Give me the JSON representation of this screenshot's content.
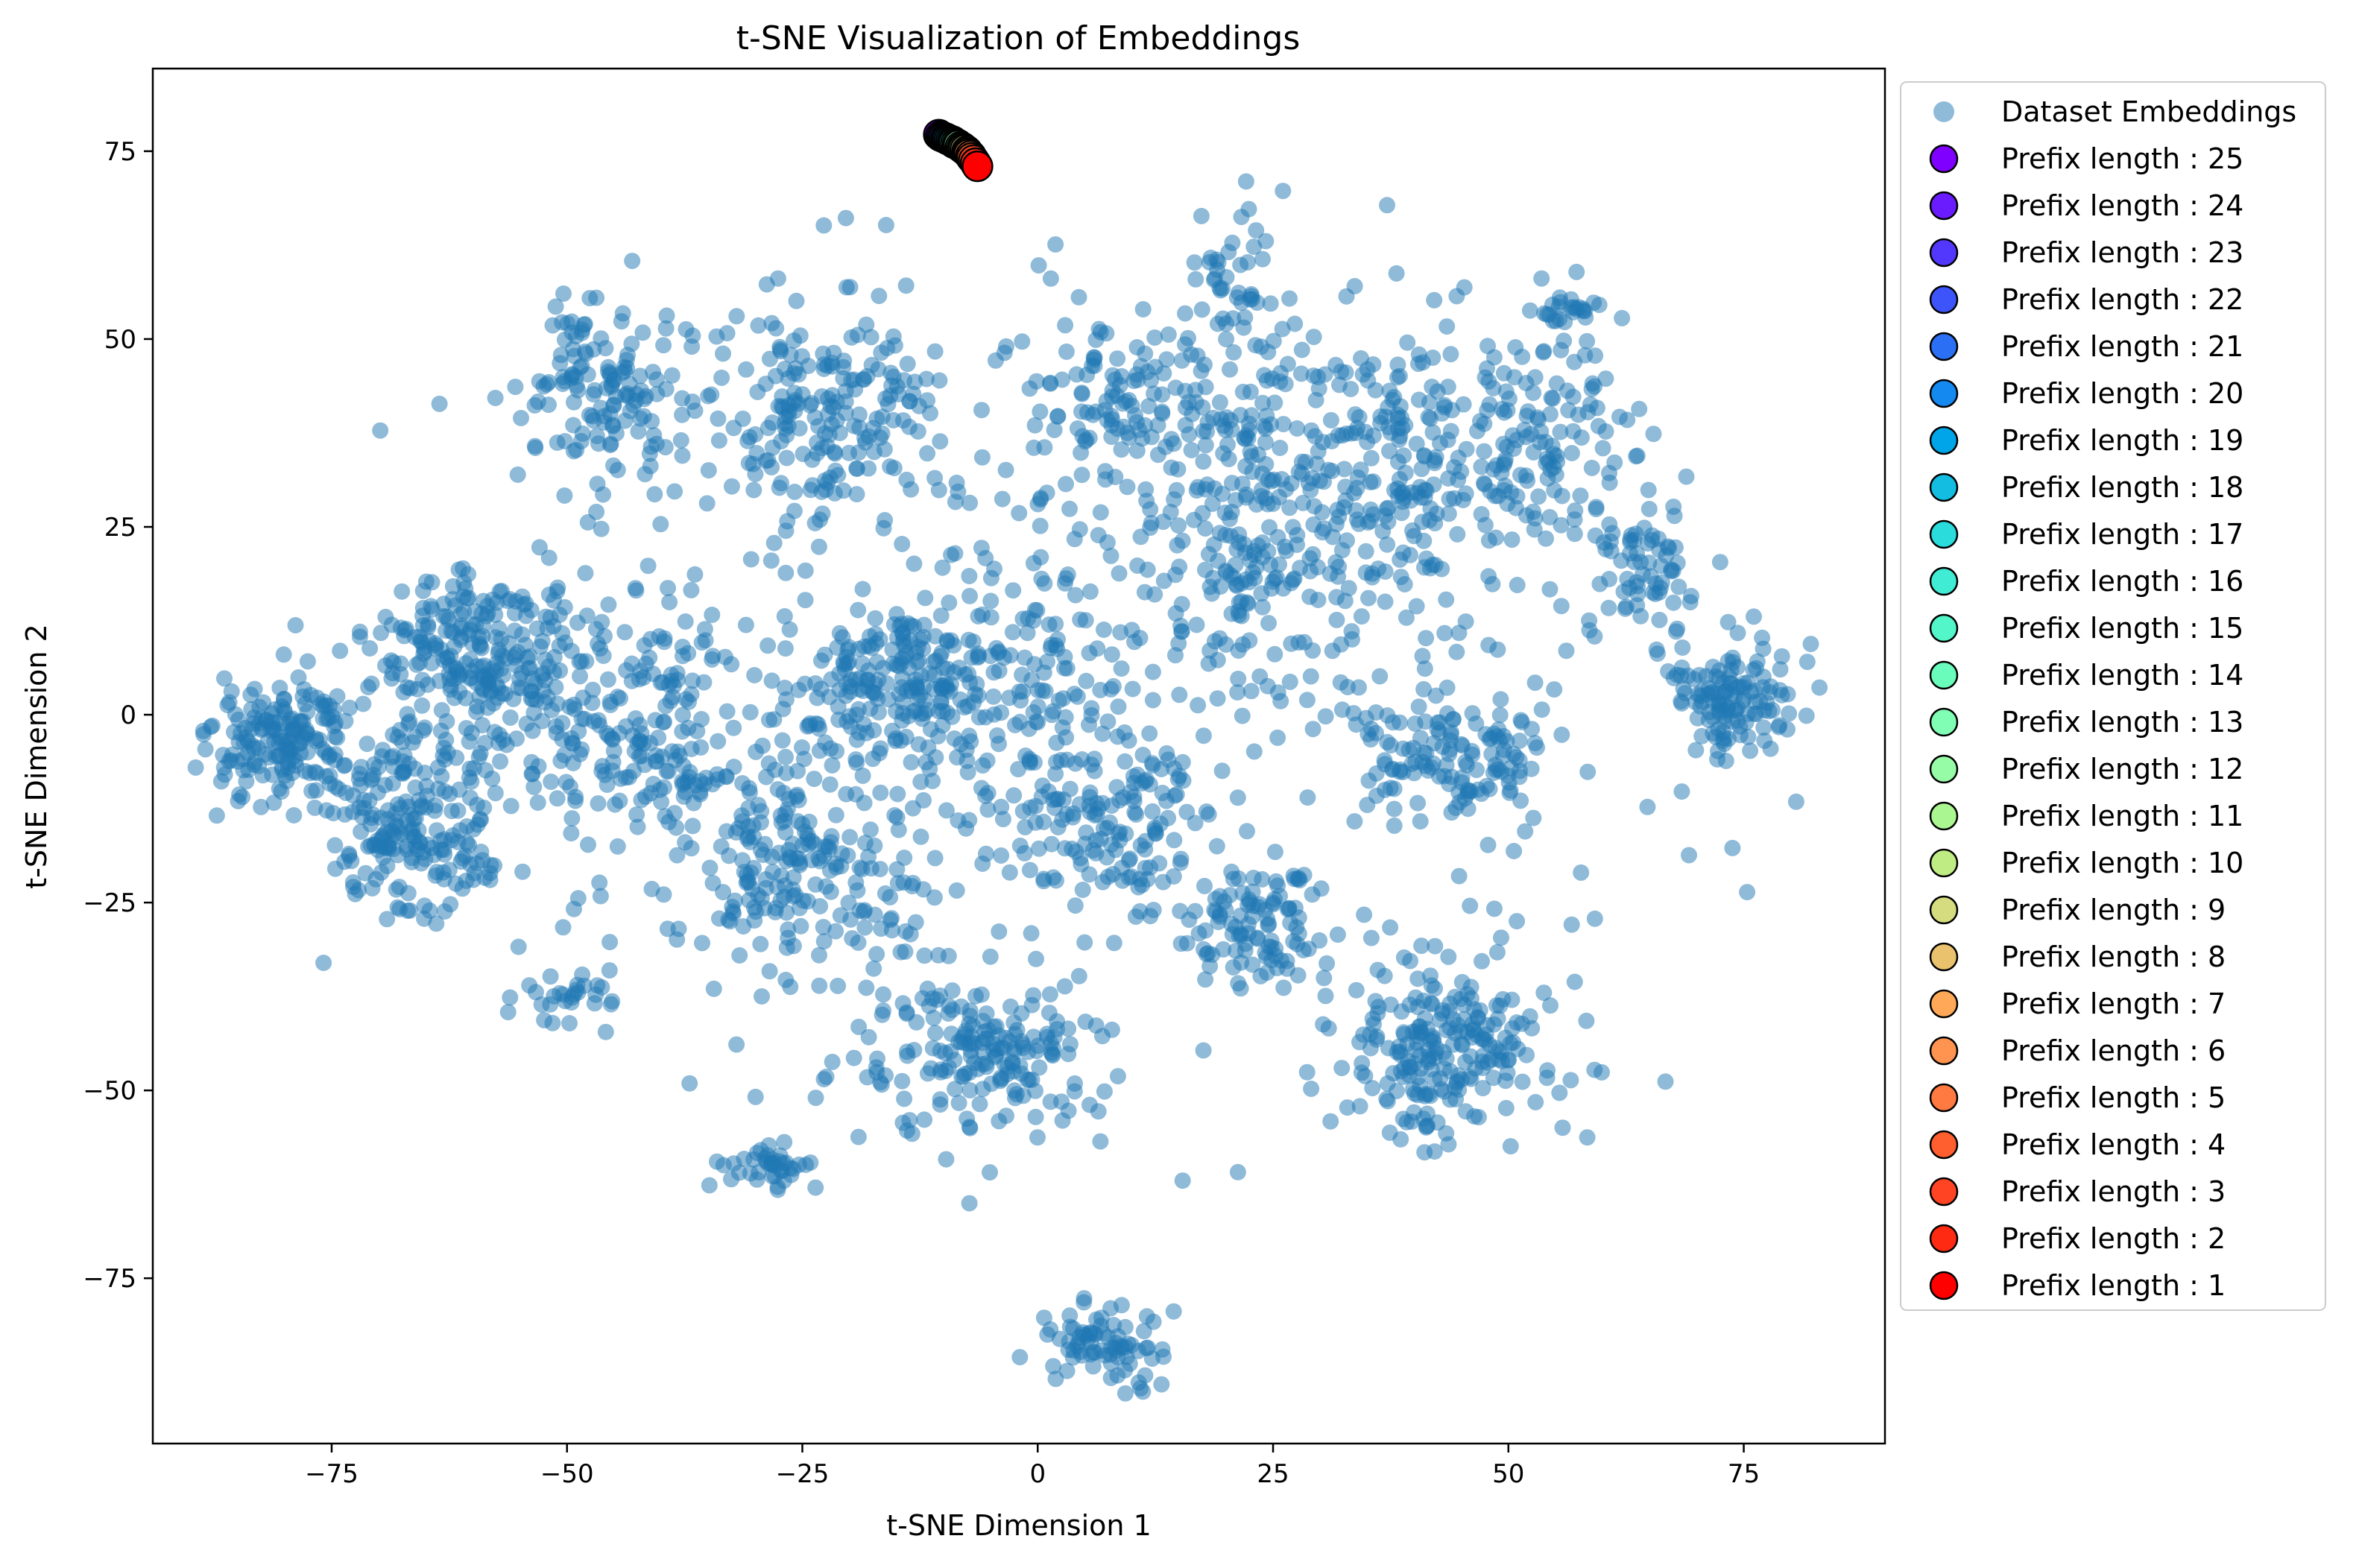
{
  "chart_data": {
    "type": "scatter",
    "title": "t-SNE Visualization of Embeddings",
    "xlabel": "t-SNE Dimension 1",
    "ylabel": "t-SNE Dimension 2",
    "xlim": [
      -94,
      90
    ],
    "ylim": [
      -97,
      86
    ],
    "xticks": [
      -75,
      -50,
      -25,
      0,
      25,
      50,
      75
    ],
    "yticks": [
      -75,
      -50,
      -25,
      0,
      25,
      50,
      75
    ],
    "grid": false,
    "legend_position": "outside-right-top",
    "dataset": {
      "name": "Dataset Embeddings",
      "color": "#1f77b4",
      "opacity": 0.5,
      "clusters": [
        {
          "cx": -80,
          "cy": -4,
          "sx": 4.0,
          "sy": 4.5,
          "n": 170
        },
        {
          "cx": -67,
          "cy": -15,
          "sx": 4.5,
          "sy": 6.0,
          "n": 210
        },
        {
          "cx": -60,
          "cy": 8,
          "sx": 5.5,
          "sy": 6.0,
          "n": 220
        },
        {
          "cx": -46,
          "cy": 43,
          "sx": 4.0,
          "sy": 5.5,
          "n": 140
        },
        {
          "cx": -50,
          "cy": -38,
          "sx": 3.0,
          "sy": 2.0,
          "n": 30
        },
        {
          "cx": -42,
          "cy": 0,
          "sx": 7.0,
          "sy": 9.0,
          "n": 220
        },
        {
          "cx": -28,
          "cy": -60,
          "sx": 2.5,
          "sy": 1.5,
          "n": 40
        },
        {
          "cx": -23,
          "cy": 40,
          "sx": 6.0,
          "sy": 8.0,
          "n": 190
        },
        {
          "cx": -15,
          "cy": 5,
          "sx": 5.0,
          "sy": 5.0,
          "n": 180
        },
        {
          "cx": -25,
          "cy": -20,
          "sx": 7.0,
          "sy": 9.0,
          "n": 200
        },
        {
          "cx": -5,
          "cy": -45,
          "sx": 6.0,
          "sy": 5.0,
          "n": 170
        },
        {
          "cx": 7,
          "cy": -84,
          "sx": 3.0,
          "sy": 2.5,
          "n": 80
        },
        {
          "cx": 8,
          "cy": 42,
          "sx": 4.0,
          "sy": 5.0,
          "n": 90
        },
        {
          "cx": 0,
          "cy": 5,
          "sx": 6.0,
          "sy": 14.0,
          "n": 150
        },
        {
          "cx": 9,
          "cy": -15,
          "sx": 5.0,
          "sy": 6.0,
          "n": 110
        },
        {
          "cx": 22,
          "cy": 30,
          "sx": 6.0,
          "sy": 14.0,
          "n": 220
        },
        {
          "cx": 21,
          "cy": 58,
          "sx": 2.0,
          "sy": 3.5,
          "n": 30
        },
        {
          "cx": 23,
          "cy": -28,
          "sx": 4.0,
          "sy": 4.0,
          "n": 100
        },
        {
          "cx": 35,
          "cy": 30,
          "sx": 7.0,
          "sy": 10.0,
          "n": 200
        },
        {
          "cx": 44,
          "cy": -5,
          "sx": 5.0,
          "sy": 5.0,
          "n": 140
        },
        {
          "cx": 43,
          "cy": -45,
          "sx": 6.0,
          "sy": 6.0,
          "n": 230
        },
        {
          "cx": 52,
          "cy": 35,
          "sx": 6.0,
          "sy": 8.0,
          "n": 160
        },
        {
          "cx": 65,
          "cy": 20,
          "sx": 2.5,
          "sy": 4.0,
          "n": 60
        },
        {
          "cx": 74,
          "cy": 3,
          "sx": 3.5,
          "sy": 4.0,
          "n": 130
        },
        {
          "cx": 55,
          "cy": 54,
          "sx": 2.5,
          "sy": 1.0,
          "n": 25
        },
        {
          "cx": 0,
          "cy": 0,
          "sx": 35.0,
          "sy": 30.0,
          "n": 320
        }
      ]
    },
    "prefix_points": [
      {
        "label": "Prefix length : 25",
        "x": -10.5,
        "y": 77.2,
        "color": "#8000ff"
      },
      {
        "label": "Prefix length : 24",
        "x": -10.3,
        "y": 77.0,
        "color": "#6a1cfe"
      },
      {
        "label": "Prefix length : 23",
        "x": -10.1,
        "y": 76.9,
        "color": "#5238fc"
      },
      {
        "label": "Prefix length : 22",
        "x": -9.9,
        "y": 76.8,
        "color": "#3c54f9"
      },
      {
        "label": "Prefix length : 21",
        "x": -9.7,
        "y": 76.7,
        "color": "#2a6ff4"
      },
      {
        "label": "Prefix length : 20",
        "x": -9.6,
        "y": 76.6,
        "color": "#1489ef"
      },
      {
        "label": "Prefix length : 19",
        "x": -9.4,
        "y": 76.5,
        "color": "#00a4e8"
      },
      {
        "label": "Prefix length : 18",
        "x": -9.2,
        "y": 76.4,
        "color": "#12bde1"
      },
      {
        "label": "Prefix length : 17",
        "x": -9.0,
        "y": 76.3,
        "color": "#2adcdc"
      },
      {
        "label": "Prefix length : 16",
        "x": -8.9,
        "y": 76.1,
        "color": "#40ecd4"
      },
      {
        "label": "Prefix length : 15",
        "x": -8.7,
        "y": 76.0,
        "color": "#52f6c9"
      },
      {
        "label": "Prefix length : 14",
        "x": -8.5,
        "y": 75.9,
        "color": "#6afcba"
      },
      {
        "label": "Prefix length : 13",
        "x": -8.4,
        "y": 75.8,
        "color": "#80ffb4"
      },
      {
        "label": "Prefix length : 12",
        "x": -8.2,
        "y": 75.6,
        "color": "#96fca6"
      },
      {
        "label": "Prefix length : 11",
        "x": -8.0,
        "y": 75.5,
        "color": "#aaf691"
      },
      {
        "label": "Prefix length : 10",
        "x": -7.9,
        "y": 75.3,
        "color": "#c0ec84"
      },
      {
        "label": "Prefix length : 9",
        "x": -7.7,
        "y": 75.2,
        "color": "#d4dc7f"
      },
      {
        "label": "Prefix length : 8",
        "x": -7.5,
        "y": 75.0,
        "color": "#eac26e"
      },
      {
        "label": "Prefix length : 7",
        "x": -7.4,
        "y": 74.8,
        "color": "#ffa958"
      },
      {
        "label": "Prefix length : 6",
        "x": -7.3,
        "y": 74.6,
        "color": "#ff9350"
      },
      {
        "label": "Prefix length : 5",
        "x": -7.1,
        "y": 74.4,
        "color": "#ff7a40"
      },
      {
        "label": "Prefix length : 4",
        "x": -7.0,
        "y": 74.1,
        "color": "#ff5e2e"
      },
      {
        "label": "Prefix length : 3",
        "x": -6.8,
        "y": 73.8,
        "color": "#ff4424"
      },
      {
        "label": "Prefix length : 2",
        "x": -6.6,
        "y": 73.4,
        "color": "#ff2a12"
      },
      {
        "label": "Prefix length : 1",
        "x": -6.4,
        "y": 73.0,
        "color": "#ff0000"
      }
    ]
  }
}
